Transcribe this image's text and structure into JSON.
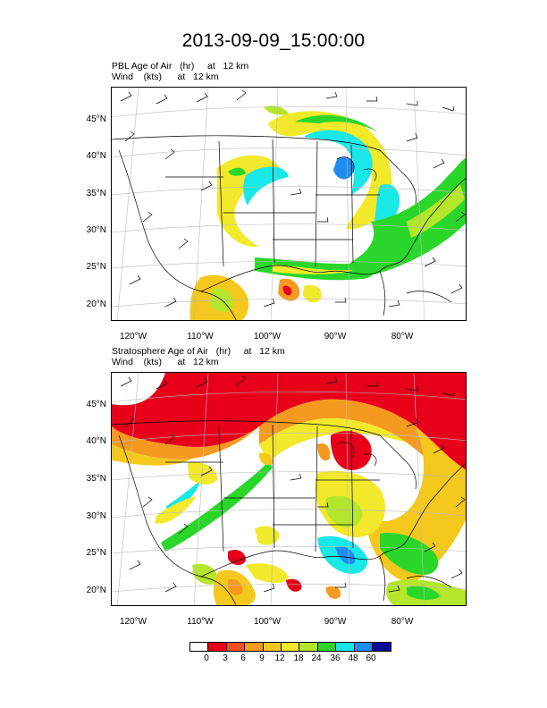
{
  "title": "2013-09-09_15:00:00",
  "panel1": {
    "line1": "PBL Age of Air   (hr)     at   12 km",
    "line2": "Wind    (kts)      at   12 km"
  },
  "panel2": {
    "line1": "Stratosphere Age of Air   (hr)     at   12 km",
    "line2": "Wind    (kts)      at   12 km"
  },
  "lat_labels": [
    "45°N",
    "40°N",
    "35°N",
    "30°N",
    "25°N",
    "20°N"
  ],
  "lon_labels": [
    "120°W",
    "110°W",
    "100°W",
    "90°W",
    "80°W"
  ],
  "colorbar": {
    "labels": [
      "0",
      "3",
      "6",
      "9",
      "12",
      "18",
      "24",
      "36",
      "48",
      "60"
    ],
    "colors": [
      "#ffffff",
      "#e8001a",
      "#f2501c",
      "#f59a1e",
      "#f5c81e",
      "#f2e92a",
      "#b4e62c",
      "#2bd62a",
      "#18e8e8",
      "#1e8cf0",
      "#0a0a96"
    ]
  }
}
